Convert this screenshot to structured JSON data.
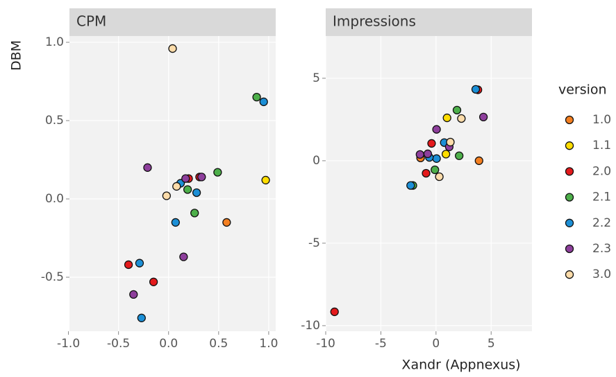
{
  "chart_data": [
    {
      "type": "scatter",
      "title": "CPM",
      "y_label": "DBM",
      "legend_title": "version",
      "xlim": [
        -0.99,
        1.07
      ],
      "ylim": [
        -0.845,
        1.04
      ],
      "xticks": [
        {
          "value": -1,
          "label": "-1.0"
        },
        -0.5,
        {
          "value": 0,
          "label": "0.0"
        },
        0.5,
        {
          "value": 1,
          "label": "1.0"
        }
      ],
      "yticks": [
        -0.5,
        {
          "value": 0,
          "label": "0.0"
        },
        0.5,
        {
          "value": 1,
          "label": "1.0"
        }
      ],
      "grid": true,
      "series": [
        {
          "name": "1.0",
          "color": "#f47f20",
          "x": [
            0.58
          ],
          "values": [
            -0.15
          ]
        },
        {
          "name": "1.1",
          "color": "#ffdd00",
          "x": [
            0.97
          ],
          "values": [
            0.12
          ]
        },
        {
          "name": "2.0",
          "color": "#e41a1c",
          "x": [
            -0.4,
            -0.15,
            0.31,
            0.2
          ],
          "values": [
            -0.42,
            -0.53,
            0.14,
            0.13
          ]
        },
        {
          "name": "2.1",
          "color": "#4daf4a",
          "x": [
            0.88,
            0.49,
            0.19,
            0.26
          ],
          "values": [
            0.65,
            0.17,
            0.06,
            -0.09
          ]
        },
        {
          "name": "2.2",
          "color": "#1c8fd6",
          "x": [
            0.95,
            0.28,
            0.12,
            0.07,
            -0.29,
            -0.27
          ],
          "values": [
            0.62,
            0.04,
            0.1,
            -0.15,
            -0.41,
            -0.76
          ]
        },
        {
          "name": "2.3",
          "color": "#8e3f9c",
          "x": [
            -0.21,
            0.33,
            0.17,
            0.15,
            -0.35
          ],
          "values": [
            0.2,
            0.14,
            0.13,
            -0.37,
            -0.61
          ]
        },
        {
          "name": "3.0",
          "color": "#fddcaa",
          "x": [
            0.04,
            -0.02,
            0.08
          ],
          "values": [
            0.96,
            0.02,
            0.08
          ]
        }
      ]
    },
    {
      "type": "scatter",
      "title": "Impressions",
      "x_label": "Xandr (Appnexus)",
      "xlim": [
        -10.0,
        8.7
      ],
      "ylim": [
        -10.34,
        7.56
      ],
      "xticks": [
        -10,
        -5,
        0,
        5
      ],
      "yticks": [
        -10,
        -5,
        0,
        5
      ],
      "grid": true,
      "series": [
        {
          "name": "1.0",
          "color": "#f47f20",
          "x": [
            3.9,
            -1.4
          ],
          "values": [
            0.0,
            0.17
          ]
        },
        {
          "name": "1.1",
          "color": "#ffdd00",
          "x": [
            1.0,
            0.9
          ],
          "values": [
            2.6,
            0.4
          ]
        },
        {
          "name": "2.0",
          "color": "#e41a1c",
          "x": [
            3.8,
            -0.4,
            -0.9,
            -9.2
          ],
          "values": [
            4.3,
            1.05,
            -0.76,
            -9.16
          ]
        },
        {
          "name": "2.1",
          "color": "#4daf4a",
          "x": [
            1.9,
            2.1,
            -0.1,
            -2.1
          ],
          "values": [
            3.07,
            0.3,
            -0.55,
            -1.5
          ]
        },
        {
          "name": "2.2",
          "color": "#1c8fd6",
          "x": [
            3.6,
            0.75,
            0.05,
            -0.6,
            -2.3
          ],
          "values": [
            4.33,
            1.1,
            0.13,
            0.2,
            -1.5
          ]
        },
        {
          "name": "2.3",
          "color": "#8e3f9c",
          "x": [
            4.3,
            0.05,
            1.2,
            -0.75,
            -1.45
          ],
          "values": [
            2.65,
            1.9,
            0.84,
            0.42,
            0.38
          ]
        },
        {
          "name": "3.0",
          "color": "#fddcaa",
          "x": [
            2.3,
            1.3,
            0.3
          ],
          "values": [
            2.56,
            1.13,
            -0.97
          ]
        }
      ]
    }
  ]
}
